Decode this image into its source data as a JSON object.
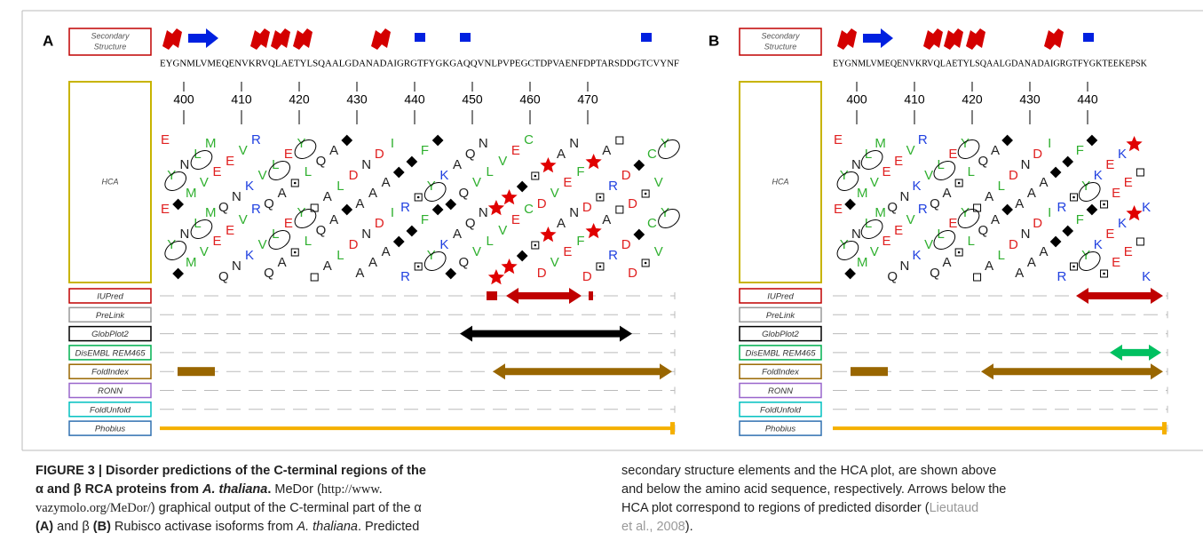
{
  "panels": [
    {
      "letter": "A",
      "sequence": "EYGNMLVMEQENVKRVQLAETYLSQAALGDANADAIGRGTFYGKGAQQVNLPVPEGCTDPVAENFDPTARSDDGTCVYNF",
      "ticks": [
        400,
        410,
        420,
        430,
        440,
        450,
        460,
        470
      ]
    },
    {
      "letter": "B",
      "sequence": "EYGNMLVMEQENVKRVQLAETYLSQAALGDANADAIGRGTFYGKTEEKEPSK",
      "ticks": [
        400,
        410,
        420,
        430,
        440
      ]
    }
  ],
  "secondary_label": [
    "Secondary",
    "Structure"
  ],
  "hca_label": "HCA",
  "tracks": [
    {
      "name": "IUPred",
      "color": "#c00000"
    },
    {
      "name": "PreLink",
      "color": "#999999"
    },
    {
      "name": "GlobPlot2",
      "color": "#000000"
    },
    {
      "name": "DisEMBL REM465",
      "color": "#00b050"
    },
    {
      "name": "FoldIndex",
      "color": "#996600"
    },
    {
      "name": "RONN",
      "color": "#9966cc"
    },
    {
      "name": "FoldUnfold",
      "color": "#00c0c0"
    },
    {
      "name": "Phobius",
      "color": "#3070b0"
    }
  ],
  "caption": {
    "left": [
      [
        {
          "text": "FIGURE 3 | Disorder predictions of the C-terminal regions of the",
          "style": "bold"
        }
      ],
      [
        {
          "text": "α and β RCA proteins from ",
          "style": "bold"
        },
        {
          "text": "A. thaliana",
          "style": "bolditalic"
        },
        {
          "text": ".",
          "style": "bold"
        },
        {
          "text": " MeDor (",
          "style": "plain"
        },
        {
          "text": "http://www.",
          "style": "serif"
        }
      ],
      [
        {
          "text": "vazymolo.org/MeDor/",
          "style": "serif"
        },
        {
          "text": ") graphical output of the C-terminal part of the α",
          "style": "plain"
        }
      ],
      [
        {
          "text": "(A)",
          "style": "bold"
        },
        {
          "text": " and β ",
          "style": "plain"
        },
        {
          "text": "(B)",
          "style": "bold"
        },
        {
          "text": " Rubisco activase isoforms from ",
          "style": "plain"
        },
        {
          "text": "A. thaliana",
          "style": "italic"
        },
        {
          "text": ". Predicted",
          "style": "plain"
        }
      ]
    ],
    "right": [
      [
        {
          "text": "secondary structure elements and the HCA plot, are shown above",
          "style": "plain"
        }
      ],
      [
        {
          "text": "and below the amino acid sequence, respectively. Arrows below the",
          "style": "plain"
        }
      ],
      [
        {
          "text": "HCA plot correspond to regions of predicted disorder (",
          "style": "plain"
        },
        {
          "text": "Lieutaud",
          "style": "link"
        }
      ],
      [
        {
          "text": "et al., 2008",
          "style": "link"
        },
        {
          "text": ").",
          "style": "plain"
        }
      ]
    ]
  }
}
